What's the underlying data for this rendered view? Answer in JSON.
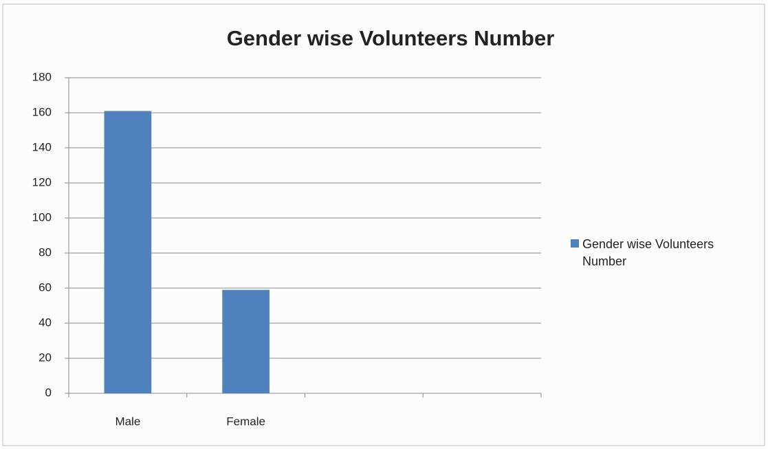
{
  "chart_data": {
    "type": "bar",
    "title": "Gender wise Volunteers Number",
    "categories": [
      "Male",
      "Female",
      null,
      null
    ],
    "series": [
      {
        "name": "Gender wise Volunteers Number",
        "color": "#4f81bd",
        "values": [
          161,
          59,
          null,
          null
        ]
      }
    ],
    "ylim": [
      0,
      180
    ],
    "yticks": [
      0,
      20,
      40,
      60,
      80,
      100,
      120,
      140,
      160,
      180
    ],
    "grid": true,
    "legend": "right"
  }
}
